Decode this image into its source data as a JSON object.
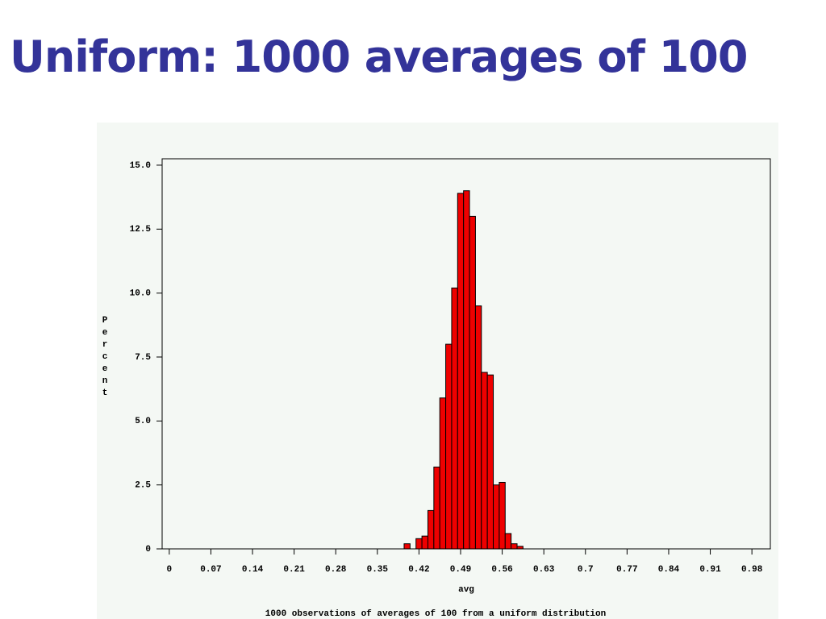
{
  "title": "Uniform: 1000 averages of 100",
  "chart_data": {
    "type": "histogram",
    "x_label": "avg",
    "y_label": "Percent",
    "caption": "1000 observations of averages of 100 from a uniform distribution",
    "bins": [
      0.395,
      0.405,
      0.415,
      0.425,
      0.435,
      0.445,
      0.455,
      0.465,
      0.475,
      0.485,
      0.495,
      0.505,
      0.515,
      0.525,
      0.535,
      0.545,
      0.555,
      0.565,
      0.575,
      0.585,
      0.595
    ],
    "values": [
      0.2,
      0,
      0.4,
      0.5,
      1.5,
      3.2,
      5.9,
      8.0,
      10.2,
      13.9,
      14.0,
      13.0,
      9.5,
      6.9,
      6.8,
      2.5,
      2.6,
      0.6,
      0.2,
      0.1
    ],
    "color": "#ee0000",
    "xlim": [
      -0.012,
      1.011
    ],
    "xticks": [
      0,
      0.07,
      0.14,
      0.21,
      0.28,
      0.35,
      0.42,
      0.49,
      0.56,
      0.63,
      0.7,
      0.77,
      0.84,
      0.91,
      0.98
    ],
    "ylim": [
      0,
      15.25
    ],
    "yticks": [
      0,
      2.5,
      {
        "value": 5,
        "label": "5.0"
      },
      7.5,
      {
        "value": 10,
        "label": "10.0"
      },
      12.5,
      {
        "value": 15,
        "label": "15.0"
      }
    ]
  }
}
